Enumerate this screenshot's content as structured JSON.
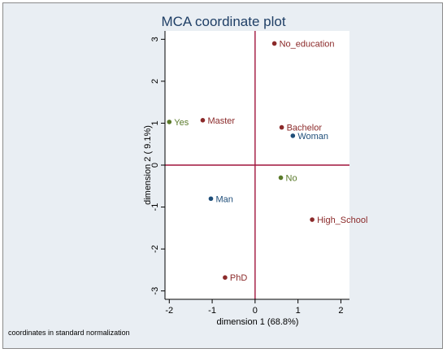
{
  "chart_data": {
    "type": "scatter",
    "title": "MCA coordinate plot",
    "xlabel": "dimension 1 (68.8%)",
    "ylabel": "dimension 2 ( 9.1%)",
    "note": "coordinates in standard normalization",
    "xlim": [
      -2.1,
      2.2
    ],
    "ylim": [
      -3.2,
      3.2
    ],
    "xticks": [
      "-2",
      "-1",
      "0",
      "1",
      "2"
    ],
    "yticks": [
      "3",
      "2",
      "1",
      "0",
      "-1",
      "-2",
      "-3"
    ],
    "grid": false,
    "points": [
      {
        "label": "No_education",
        "x": 0.45,
        "y": 2.9,
        "color": "#8b2a2a"
      },
      {
        "label": "Yes",
        "x": -2.0,
        "y": 1.03,
        "color": "#5a7a2a"
      },
      {
        "label": "Master",
        "x": -1.22,
        "y": 1.07,
        "color": "#8b2a2a"
      },
      {
        "label": "Bachelor",
        "x": 0.62,
        "y": 0.9,
        "color": "#8b2a2a"
      },
      {
        "label": "Woman",
        "x": 0.88,
        "y": 0.7,
        "color": "#1f4e79"
      },
      {
        "label": "No",
        "x": 0.6,
        "y": -0.3,
        "color": "#5a7a2a"
      },
      {
        "label": "Man",
        "x": -1.03,
        "y": -0.8,
        "color": "#1f4e79"
      },
      {
        "label": "High_School",
        "x": 1.33,
        "y": -1.3,
        "color": "#8b2a2a"
      },
      {
        "label": "PhD",
        "x": -0.7,
        "y": -2.68,
        "color": "#8b2a2a"
      }
    ],
    "colors": {
      "title": "#1f3f66",
      "reference_lines": "#a0143c",
      "background_outer": "#e9eef3",
      "background_plot": "#ffffff"
    }
  }
}
